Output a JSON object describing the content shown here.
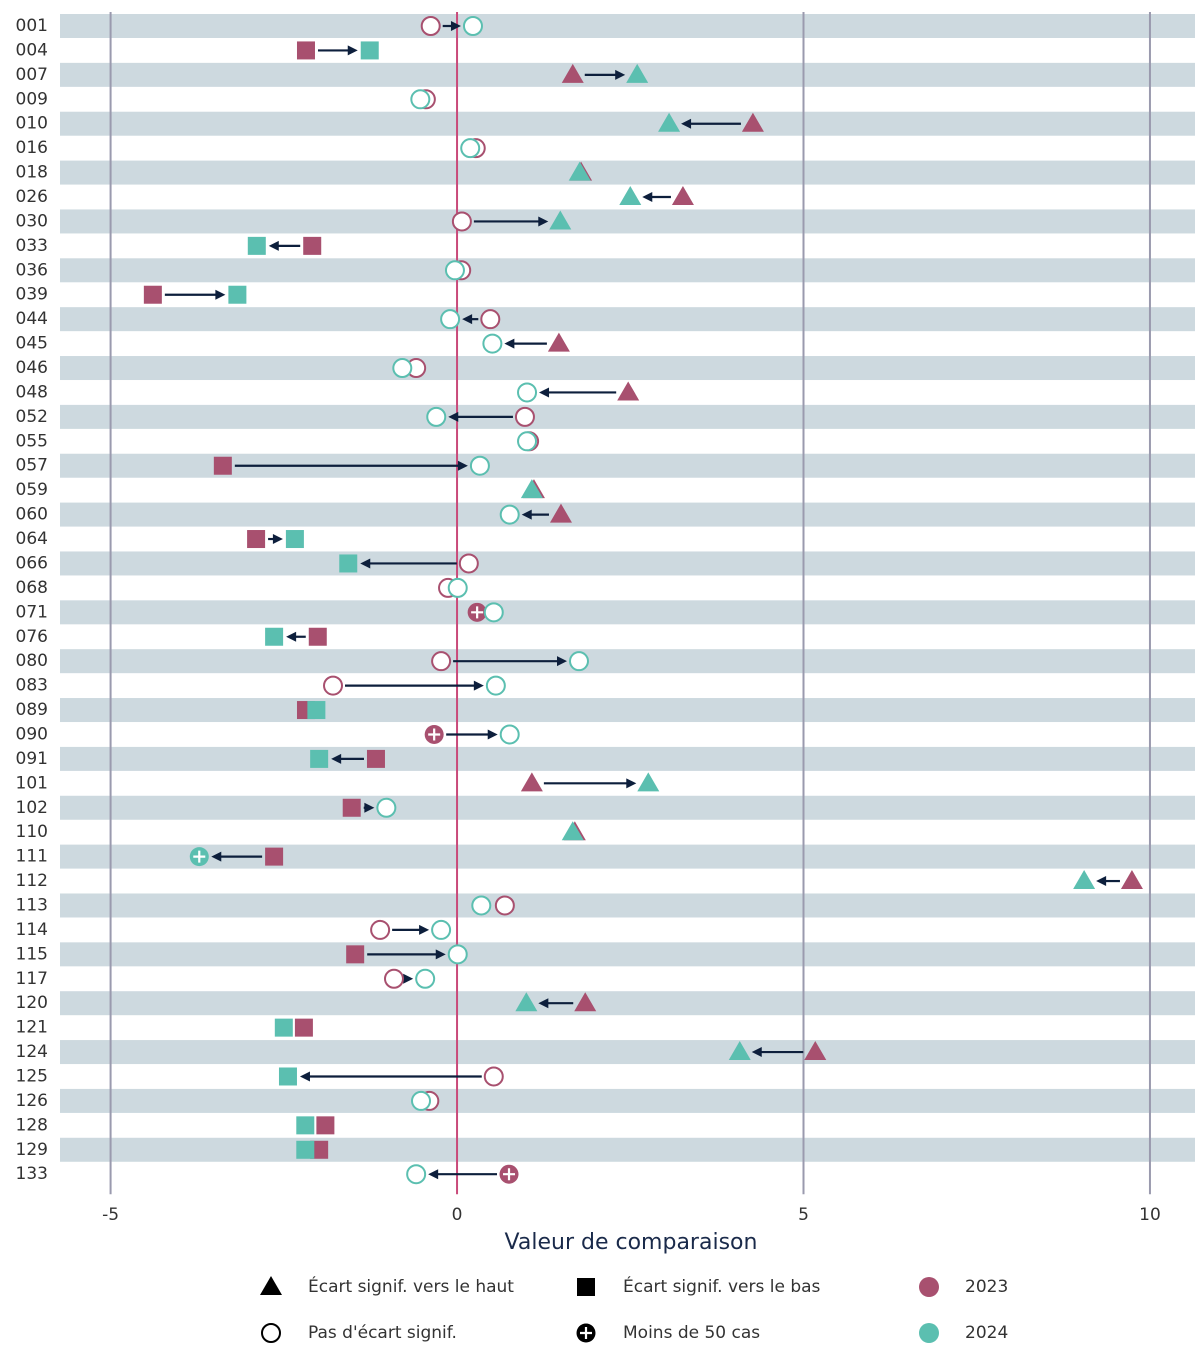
{
  "chart_data": {
    "type": "arrow-dot",
    "x_label": "Valeur de comparaison",
    "categories": [
      "001",
      "004",
      "007",
      "009",
      "010",
      "016",
      "018",
      "026",
      "030",
      "033",
      "036",
      "039",
      "044",
      "045",
      "046",
      "048",
      "052",
      "055",
      "057",
      "059",
      "060",
      "064",
      "066",
      "068",
      "071",
      "076",
      "080",
      "083",
      "089",
      "090",
      "091",
      "101",
      "102",
      "110",
      "111",
      "112",
      "113",
      "114",
      "115",
      "117",
      "120",
      "121",
      "124",
      "125",
      "126",
      "128",
      "129",
      "133"
    ],
    "series": [
      {
        "name": "2023",
        "color": "#a8506f",
        "values": [
          -0.38,
          -2.18,
          1.67,
          -0.45,
          4.27,
          0.27,
          1.79,
          3.26,
          0.07,
          -2.09,
          0.06,
          -4.39,
          0.48,
          1.47,
          -0.59,
          2.47,
          0.98,
          1.04,
          -3.38,
          1.11,
          1.5,
          -2.9,
          0.17,
          -0.13,
          0.29,
          -2.01,
          -0.23,
          -1.79,
          -2.18,
          -0.33,
          -1.17,
          1.08,
          -1.52,
          1.7,
          -2.64,
          9.74,
          0.69,
          -1.11,
          -1.47,
          -0.91,
          1.85,
          -2.21,
          5.17,
          0.53,
          -0.4,
          -1.9,
          -1.99,
          0.75
        ],
        "markers": [
          "circle",
          "square",
          "triangle",
          "circle",
          "triangle",
          "circle",
          "triangle",
          "triangle",
          "circle",
          "square",
          "circle",
          "square",
          "circle",
          "triangle",
          "circle",
          "triangle",
          "circle",
          "circle",
          "square",
          "triangle",
          "triangle",
          "square",
          "circle",
          "circle",
          "plus",
          "square",
          "circle",
          "circle",
          "square",
          "plus",
          "square",
          "triangle",
          "square",
          "triangle",
          "square",
          "triangle",
          "circle",
          "circle",
          "square",
          "circle",
          "triangle",
          "square",
          "triangle",
          "circle",
          "circle",
          "square",
          "square",
          "plus"
        ]
      },
      {
        "name": "2024",
        "color": "#5bbfb0",
        "values": [
          0.23,
          -1.26,
          2.6,
          -0.53,
          3.06,
          0.19,
          1.77,
          2.5,
          1.49,
          -2.89,
          -0.03,
          -3.17,
          -0.1,
          0.51,
          -0.79,
          1.01,
          -0.3,
          1.01,
          0.33,
          1.08,
          0.76,
          -2.34,
          -1.57,
          0.01,
          0.53,
          -2.64,
          1.76,
          0.56,
          -2.03,
          0.76,
          -1.99,
          2.76,
          -1.02,
          1.67,
          -3.72,
          9.05,
          0.35,
          -0.23,
          0.01,
          -0.46,
          1.0,
          -2.5,
          4.08,
          -2.44,
          -0.52,
          -2.19,
          -2.19,
          -0.59
        ],
        "markers": [
          "circle",
          "square",
          "triangle",
          "circle",
          "triangle",
          "circle",
          "triangle",
          "triangle",
          "triangle",
          "square",
          "circle",
          "square",
          "circle",
          "circle",
          "circle",
          "circle",
          "circle",
          "circle",
          "circle",
          "triangle",
          "circle",
          "square",
          "square",
          "circle",
          "circle",
          "square",
          "circle",
          "circle",
          "square",
          "circle",
          "square",
          "triangle",
          "circle",
          "triangle",
          "plus",
          "triangle",
          "circle",
          "circle",
          "circle",
          "circle",
          "triangle",
          "square",
          "triangle",
          "square",
          "circle",
          "square",
          "square",
          "circle"
        ]
      }
    ],
    "marker_legend": [
      {
        "label": "Écart signif. vers le haut",
        "marker": "triangle"
      },
      {
        "label": "Écart signif. vers le bas",
        "marker": "square"
      },
      {
        "label": "Pas d'écart signif.",
        "marker": "circle"
      },
      {
        "label": "Moins de 50 cas",
        "marker": "plus"
      }
    ],
    "xlim": [
      -5.73,
      10.65
    ],
    "xticks": [
      -5,
      0,
      5,
      10
    ],
    "zero_line_color": "#c94a7a",
    "stripe_color": "#cdd9df",
    "arrow_color": "#0d1f3c"
  }
}
